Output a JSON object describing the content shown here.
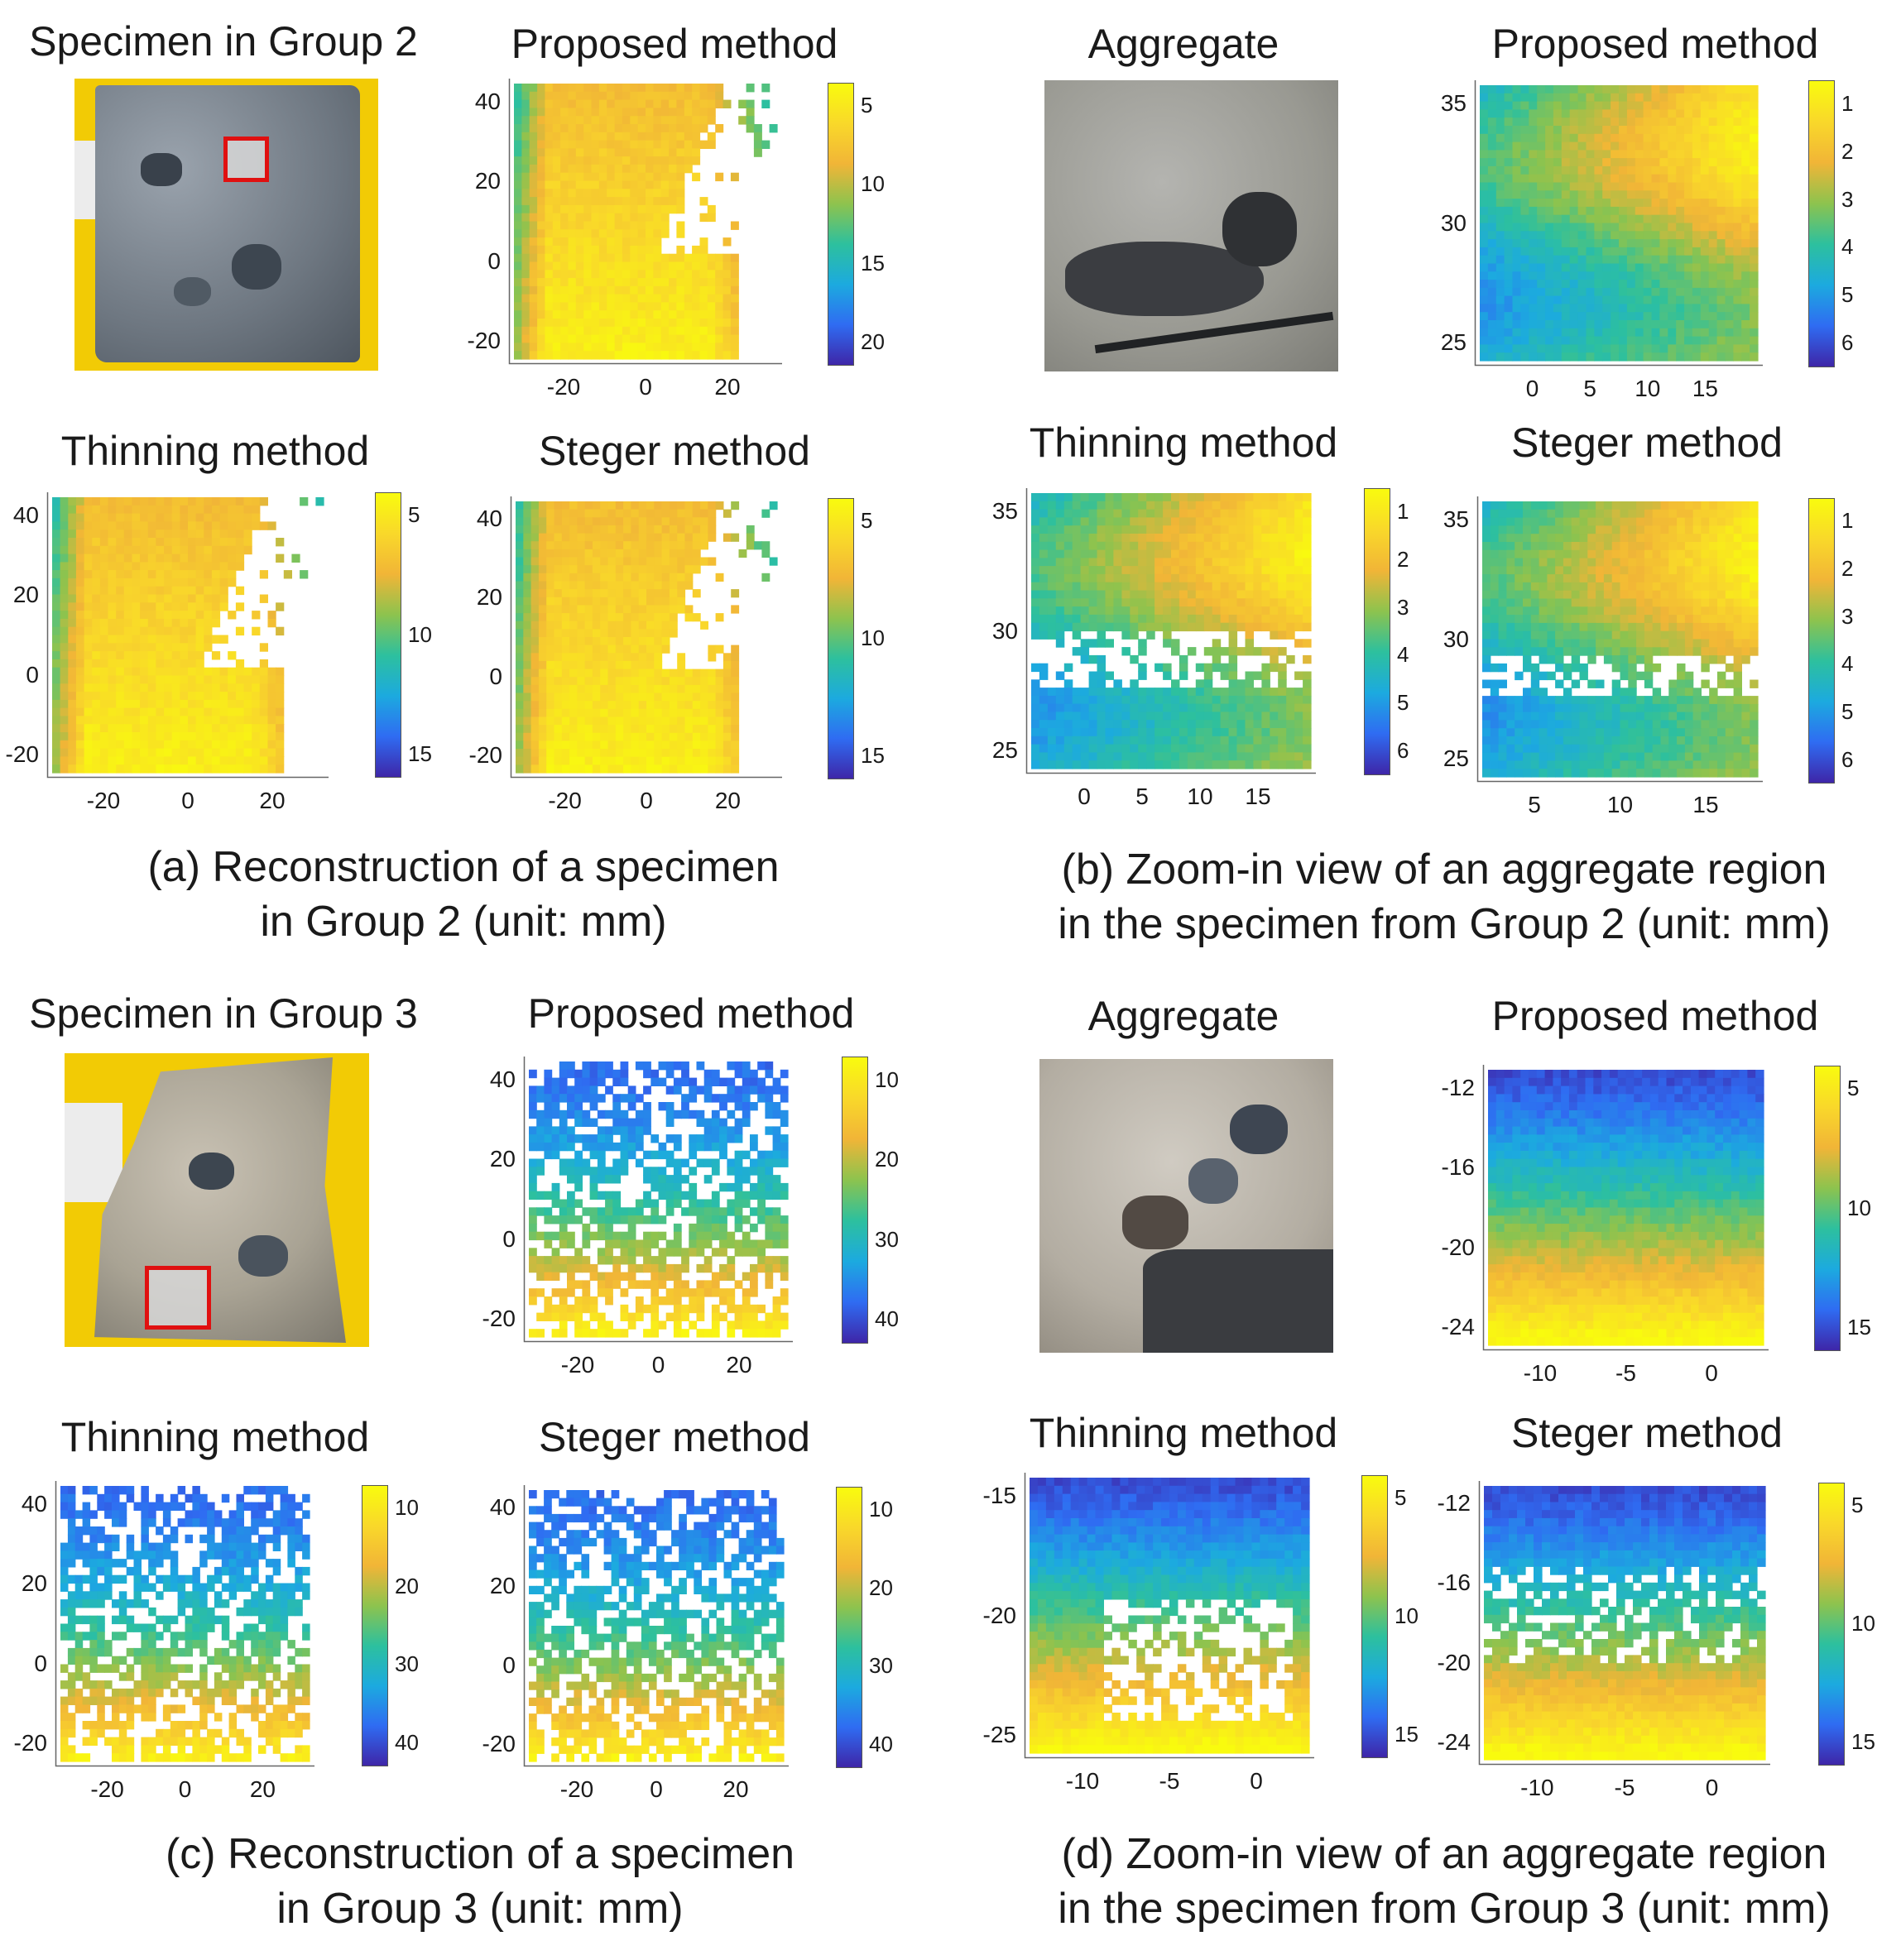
{
  "panels": {
    "a": {
      "caption_line1": "(a) Reconstruction of a specimen",
      "caption_line2": "in Group 2 (unit: mm)",
      "photo_title": "Specimen in Group 2",
      "charts": [
        {
          "id": "a-proposed",
          "title": "Proposed method",
          "xticks": [
            "-20",
            "0",
            "20"
          ],
          "yticks": [
            "40",
            "20",
            "0",
            "-20"
          ],
          "cbar_ticks": [
            "5",
            "10",
            "15",
            "20"
          ]
        },
        {
          "id": "a-thinning",
          "title": "Thinning method",
          "xticks": [
            "-20",
            "0",
            "20"
          ],
          "yticks": [
            "40",
            "20",
            "0",
            "-20"
          ],
          "cbar_ticks": [
            "5",
            "10",
            "15"
          ]
        },
        {
          "id": "a-steger",
          "title": "Steger method",
          "xticks": [
            "-20",
            "0",
            "20"
          ],
          "yticks": [
            "40",
            "20",
            "0",
            "-20"
          ],
          "cbar_ticks": [
            "5",
            "10",
            "15"
          ]
        }
      ]
    },
    "b": {
      "caption_line1": "(b) Zoom-in view of an aggregate region",
      "caption_line2": "in the specimen from Group 2 (unit: mm)",
      "photo_title": "Aggregate",
      "charts": [
        {
          "id": "b-proposed",
          "title": "Proposed method",
          "xticks": [
            "0",
            "5",
            "10",
            "15"
          ],
          "yticks": [
            "35",
            "30",
            "25"
          ],
          "cbar_ticks": [
            "1",
            "2",
            "3",
            "4",
            "5",
            "6"
          ]
        },
        {
          "id": "b-thinning",
          "title": "Thinning method",
          "xticks": [
            "0",
            "5",
            "10",
            "15"
          ],
          "yticks": [
            "35",
            "30",
            "25"
          ],
          "cbar_ticks": [
            "1",
            "2",
            "3",
            "4",
            "5",
            "6"
          ]
        },
        {
          "id": "b-steger",
          "title": "Steger method",
          "xticks": [
            "5",
            "10",
            "15"
          ],
          "yticks": [
            "35",
            "30",
            "25"
          ],
          "cbar_ticks": [
            "1",
            "2",
            "3",
            "4",
            "5",
            "6"
          ]
        }
      ]
    },
    "c": {
      "caption_line1": "(c) Reconstruction of a specimen",
      "caption_line2": "in Group 3 (unit: mm)",
      "photo_title": "Specimen in Group 3",
      "charts": [
        {
          "id": "c-proposed",
          "title": "Proposed method",
          "xticks": [
            "-20",
            "0",
            "20"
          ],
          "yticks": [
            "40",
            "20",
            "0",
            "-20"
          ],
          "cbar_ticks": [
            "10",
            "20",
            "30",
            "40"
          ]
        },
        {
          "id": "c-thinning",
          "title": "Thinning method",
          "xticks": [
            "-20",
            "0",
            "20"
          ],
          "yticks": [
            "40",
            "20",
            "0",
            "-20"
          ],
          "cbar_ticks": [
            "10",
            "20",
            "30",
            "40"
          ]
        },
        {
          "id": "c-steger",
          "title": "Steger method",
          "xticks": [
            "-20",
            "0",
            "20"
          ],
          "yticks": [
            "40",
            "20",
            "0",
            "-20"
          ],
          "cbar_ticks": [
            "10",
            "20",
            "30",
            "40"
          ]
        }
      ]
    },
    "d": {
      "caption_line1": "(d) Zoom-in view of an aggregate region",
      "caption_line2": "in the specimen from Group 3 (unit: mm)",
      "photo_title": "Aggregate",
      "charts": [
        {
          "id": "d-proposed",
          "title": "Proposed method",
          "xticks": [
            "-10",
            "-5",
            "0"
          ],
          "yticks": [
            "-12",
            "-16",
            "-20",
            "-24"
          ],
          "cbar_ticks": [
            "5",
            "10",
            "15"
          ]
        },
        {
          "id": "d-thinning",
          "title": "Thinning method",
          "xticks": [
            "-10",
            "-5",
            "0"
          ],
          "yticks": [
            "-15",
            "-20",
            "-25"
          ],
          "cbar_ticks": [
            "5",
            "10",
            "15"
          ]
        },
        {
          "id": "d-steger",
          "title": "Steger method",
          "xticks": [
            "-10",
            "-5",
            "0"
          ],
          "yticks": [
            "-12",
            "-16",
            "-20",
            "-24"
          ],
          "cbar_ticks": [
            "5",
            "10",
            "15"
          ]
        }
      ]
    }
  },
  "colors": {
    "colormap": [
      "#3e26a8",
      "#2f6cf2",
      "#1caadf",
      "#2dc09e",
      "#8dc34e",
      "#f1b537",
      "#f9d82a",
      "#f9fb0e"
    ],
    "specimen_background": "#f2cb05",
    "marker": "#e01010"
  },
  "chart_data": [
    {
      "type": "heatmap",
      "panel": "a",
      "title": "Proposed method",
      "x_ticks": [
        -20,
        0,
        20
      ],
      "y_ticks": [
        40,
        20,
        0,
        -20
      ],
      "colorbar_ticks": [
        5,
        10,
        15,
        20
      ],
      "colorbar_reversed": true,
      "colormap": "parula"
    },
    {
      "type": "heatmap",
      "panel": "a",
      "title": "Thinning method",
      "x_ticks": [
        -20,
        0,
        20
      ],
      "y_ticks": [
        40,
        20,
        0,
        -20
      ],
      "colorbar_ticks": [
        5,
        10,
        15
      ],
      "colorbar_reversed": true,
      "colormap": "parula"
    },
    {
      "type": "heatmap",
      "panel": "a",
      "title": "Steger method",
      "x_ticks": [
        -20,
        0,
        20
      ],
      "y_ticks": [
        40,
        20,
        0,
        -20
      ],
      "colorbar_ticks": [
        5,
        10,
        15
      ],
      "colorbar_reversed": true,
      "colormap": "parula"
    },
    {
      "type": "heatmap",
      "panel": "b",
      "title": "Proposed method",
      "x_ticks": [
        0,
        5,
        10,
        15
      ],
      "y_ticks": [
        35,
        30,
        25
      ],
      "colorbar_ticks": [
        1,
        2,
        3,
        4,
        5,
        6
      ],
      "colorbar_reversed": true,
      "colormap": "parula"
    },
    {
      "type": "heatmap",
      "panel": "b",
      "title": "Thinning method",
      "x_ticks": [
        0,
        5,
        10,
        15
      ],
      "y_ticks": [
        35,
        30,
        25
      ],
      "colorbar_ticks": [
        1,
        2,
        3,
        4,
        5,
        6
      ],
      "colorbar_reversed": true,
      "colormap": "parula"
    },
    {
      "type": "heatmap",
      "panel": "b",
      "title": "Steger method",
      "x_ticks": [
        5,
        10,
        15
      ],
      "y_ticks": [
        35,
        30,
        25
      ],
      "colorbar_ticks": [
        1,
        2,
        3,
        4,
        5,
        6
      ],
      "colorbar_reversed": true,
      "colormap": "parula"
    },
    {
      "type": "heatmap",
      "panel": "c",
      "title": "Proposed method",
      "x_ticks": [
        -20,
        0,
        20
      ],
      "y_ticks": [
        40,
        20,
        0,
        -20
      ],
      "colorbar_ticks": [
        10,
        20,
        30,
        40
      ],
      "colorbar_reversed": true,
      "colormap": "parula"
    },
    {
      "type": "heatmap",
      "panel": "c",
      "title": "Thinning method",
      "x_ticks": [
        -20,
        0,
        20
      ],
      "y_ticks": [
        40,
        20,
        0,
        -20
      ],
      "colorbar_ticks": [
        10,
        20,
        30,
        40
      ],
      "colorbar_reversed": true,
      "colormap": "parula"
    },
    {
      "type": "heatmap",
      "panel": "c",
      "title": "Steger method",
      "x_ticks": [
        -20,
        0,
        20
      ],
      "y_ticks": [
        40,
        20,
        0,
        -20
      ],
      "colorbar_ticks": [
        10,
        20,
        30,
        40
      ],
      "colorbar_reversed": true,
      "colormap": "parula"
    },
    {
      "type": "heatmap",
      "panel": "d",
      "title": "Proposed method",
      "x_ticks": [
        -10,
        -5,
        0
      ],
      "y_ticks": [
        -12,
        -16,
        -20,
        -24
      ],
      "colorbar_ticks": [
        5,
        10,
        15
      ],
      "colorbar_reversed": true,
      "colormap": "parula"
    },
    {
      "type": "heatmap",
      "panel": "d",
      "title": "Thinning method",
      "x_ticks": [
        -10,
        -5,
        0
      ],
      "y_ticks": [
        -15,
        -20,
        -25
      ],
      "colorbar_ticks": [
        5,
        10,
        15
      ],
      "colorbar_reversed": true,
      "colormap": "parula"
    },
    {
      "type": "heatmap",
      "panel": "d",
      "title": "Steger method",
      "x_ticks": [
        -10,
        -5,
        0
      ],
      "y_ticks": [
        -12,
        -16,
        -20,
        -24
      ],
      "colorbar_ticks": [
        5,
        10,
        15
      ],
      "colorbar_reversed": true,
      "colormap": "parula"
    }
  ]
}
